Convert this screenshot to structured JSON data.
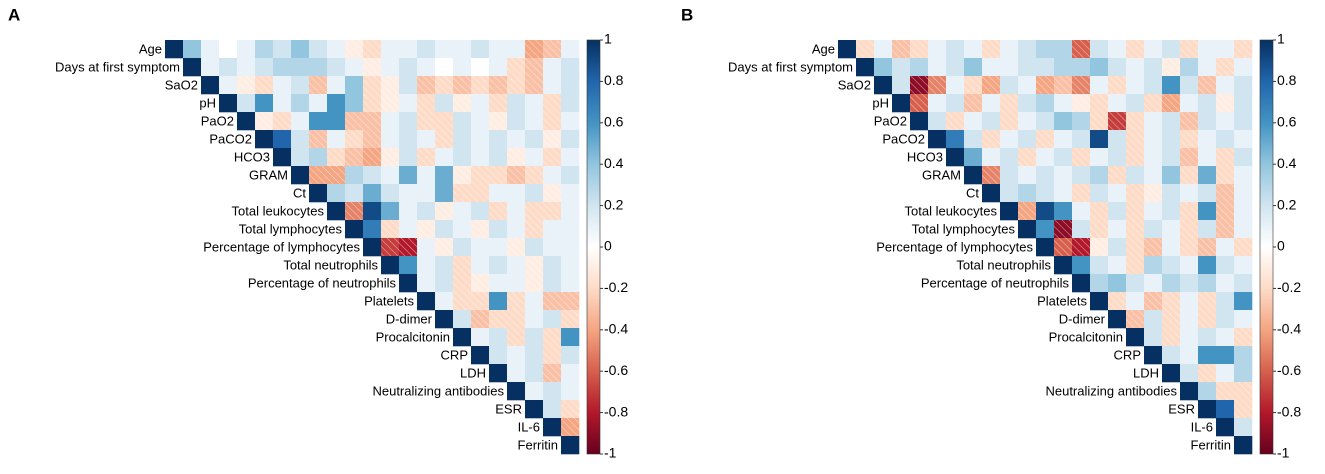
{
  "chart_data": [
    {
      "type": "heatmap",
      "title": "A",
      "categories": [
        "Age",
        "Days at first symptom",
        "SaO2",
        "pH",
        "PaO2",
        "PaCO2",
        "HCO3",
        "GRAM",
        "Ct",
        "Total leukocytes",
        "Total lymphocytes",
        "Percentage of lymphocytes",
        "Total neutrophils",
        "Percentage of neutrophils",
        "Platelets",
        "D-dimer",
        "Procalcitonin",
        "CRP",
        "LDH",
        "Neutralizing antibodies",
        "ESR",
        "IL-6",
        "Ferritin"
      ],
      "values": [
        [
          1,
          0.4,
          0.1,
          0,
          0.1,
          0.3,
          0.2,
          0.4,
          0.2,
          0.1,
          -0.1,
          -0.2,
          0.1,
          0.1,
          0.2,
          0.1,
          0.1,
          0.2,
          0.1,
          0.1,
          -0.4,
          -0.3,
          0.1
        ],
        [
          1,
          0.1,
          0.2,
          0.1,
          0.2,
          0.3,
          0.3,
          0.3,
          0.2,
          0.1,
          -0.1,
          0.1,
          0.2,
          0.1,
          0,
          0.1,
          0,
          0.1,
          -0.2,
          -0.3,
          0.1,
          0.2
        ],
        [
          1,
          0.1,
          -0.1,
          -0.2,
          0.1,
          0.2,
          -0.3,
          0.1,
          0.4,
          -0.2,
          -0.1,
          0.2,
          -0.3,
          -0.2,
          -0.3,
          -0.2,
          -0.3,
          -0.2,
          -0.3,
          0.1,
          0.2
        ],
        [
          1,
          0.2,
          0.6,
          0.1,
          0.3,
          0.1,
          0.6,
          0.4,
          -0.2,
          -0.1,
          0.1,
          -0.2,
          0.2,
          -0.1,
          0.1,
          -0.2,
          0.2,
          0.1,
          -0.2,
          0.2
        ],
        [
          1,
          -0.1,
          -0.2,
          0.1,
          0.6,
          0.6,
          -0.3,
          -0.3,
          0.1,
          0.2,
          -0.2,
          -0.2,
          0.2,
          0.1,
          -0.1,
          0.2,
          0.1,
          -0.2,
          0.1
        ],
        [
          1,
          0.8,
          0.2,
          -0.3,
          0.1,
          -0.2,
          -0.3,
          0.1,
          0.2,
          0.1,
          -0.2,
          0.2,
          0.1,
          0.2,
          0.1,
          0.2,
          -0.1,
          0.2
        ],
        [
          1,
          0.2,
          0.3,
          -0.2,
          -0.3,
          -0.4,
          -0.1,
          0.2,
          -0.2,
          0.1,
          0.2,
          0.1,
          0.2,
          -0.1,
          0.1,
          -0.2,
          0.1
        ],
        [
          1,
          -0.4,
          -0.4,
          0.3,
          0.2,
          0.1,
          0.5,
          0.1,
          0.5,
          -0.1,
          -0.2,
          -0.2,
          -0.3,
          -0.2,
          0.1,
          0.2
        ],
        [
          1,
          0.3,
          0.2,
          0.5,
          0.2,
          0.1,
          0.1,
          0.5,
          -0.2,
          -0.2,
          0.1,
          0.1,
          0.2,
          -0.1,
          0.1
        ],
        [
          1,
          -0.5,
          0.9,
          0.5,
          0.1,
          0.2,
          -0.1,
          0.1,
          0.2,
          -0.2,
          0.1,
          -0.2,
          -0.2,
          0.1
        ],
        [
          1,
          0.7,
          -0.2,
          0.1,
          -0.1,
          0.2,
          0.1,
          -0.1,
          0.2,
          0.1,
          -0.2,
          0.1,
          0.1
        ],
        [
          1,
          -0.7,
          -0.8,
          0.1,
          -0.1,
          0.2,
          0.1,
          0.1,
          -0.1,
          0.2,
          0.1,
          0.1
        ],
        [
          1,
          0.6,
          0.1,
          0.2,
          -0.2,
          0.1,
          0.2,
          0.1,
          -0.1,
          0.2,
          0.1
        ],
        [
          1,
          0.1,
          0.2,
          -0.2,
          -0.1,
          0.1,
          0.1,
          -0.1,
          0.2,
          0.1
        ],
        [
          1,
          0.1,
          -0.2,
          -0.2,
          0.6,
          -0.2,
          0.1,
          -0.3,
          -0.3
        ],
        [
          1,
          0.2,
          -0.3,
          -0.2,
          -0.2,
          0.1,
          0.2,
          -0.2
        ],
        [
          1,
          0.1,
          0.2,
          -0.2,
          0.2,
          -0.2,
          0.6
        ],
        [
          1,
          0.2,
          0.1,
          0.2,
          -0.2,
          0.2
        ],
        [
          1,
          0.1,
          0.2,
          -0.3,
          0.1
        ],
        [
          1,
          0.1,
          0.2,
          0.1
        ],
        [
          1,
          0.2,
          -0.2
        ],
        [
          1,
          -0.4
        ],
        [
          1
        ]
      ],
      "clim": [
        -1,
        1
      ],
      "cticks": [
        1,
        0.8,
        0.6,
        0.4,
        0.2,
        0,
        -0.2,
        -0.4,
        -0.6,
        -0.8,
        -1
      ],
      "colors": [
        "#67001f",
        "#b2182b",
        "#d6604d",
        "#f4a582",
        "#fddbc7",
        "#ffffff",
        "#d1e5f0",
        "#92c5de",
        "#4393c3",
        "#2166ac",
        "#053061"
      ]
    },
    {
      "type": "heatmap",
      "title": "B",
      "categories": [
        "Age",
        "Days at first symptom",
        "SaO2",
        "pH",
        "PaO2",
        "PaCO2",
        "HCO3",
        "GRAM",
        "Ct",
        "Total leukocytes",
        "Total lymphocytes",
        "Percentage of lymphocytes",
        "Total neutrophils",
        "Percentage of neutrophils",
        "Platelets",
        "D-dimer",
        "Procalcitonin",
        "CRP",
        "LDH",
        "Neutralizing antibodies",
        "ESR",
        "IL-6",
        "Ferritin"
      ],
      "values": [
        [
          1,
          -0.2,
          0.1,
          -0.3,
          -0.2,
          0.1,
          0.2,
          0.1,
          -0.2,
          0.1,
          0.2,
          0.3,
          0.3,
          -0.6,
          0.2,
          0.1,
          -0.2,
          0.1,
          0.2,
          -0.2,
          0.1,
          0.1,
          -0.2
        ],
        [
          1,
          0.4,
          0.2,
          0.3,
          0.1,
          0.2,
          0.4,
          0.1,
          0.1,
          0.2,
          0.2,
          0.3,
          0.3,
          0.4,
          0.2,
          0.1,
          0.2,
          -0.1,
          0.3,
          0.1,
          -0.2,
          0.1
        ],
        [
          1,
          0.2,
          -0.9,
          -0.5,
          0.1,
          -0.2,
          -0.4,
          0.2,
          0.1,
          -0.4,
          -0.3,
          -0.5,
          0.1,
          -0.2,
          0.1,
          0.2,
          0.6,
          0.2,
          -0.3,
          0.1,
          0.2
        ],
        [
          1,
          -0.6,
          0.1,
          0.2,
          -0.3,
          0.1,
          -0.2,
          0.2,
          0.3,
          0.1,
          -0.1,
          -0.2,
          0.1,
          0.2,
          -0.2,
          -0.4,
          0.1,
          0.2,
          -0.1,
          0.2
        ],
        [
          1,
          0.2,
          -0.2,
          0.1,
          0.2,
          -0.2,
          0.1,
          0.2,
          0.4,
          0.3,
          -0.2,
          -0.7,
          -0.2,
          0.1,
          0.2,
          -0.3,
          0.2,
          0.1,
          0.2
        ],
        [
          1,
          0.7,
          0.2,
          -0.2,
          0.1,
          0.2,
          -0.2,
          0.1,
          0.2,
          0.9,
          0.2,
          -0.2,
          0.1,
          0.2,
          -0.2,
          0.1,
          0.2,
          0.1
        ],
        [
          1,
          0.5,
          0.1,
          0.2,
          -0.2,
          0.1,
          0.2,
          -0.2,
          0.1,
          0.2,
          -0.2,
          0.1,
          0.2,
          -0.3,
          0.1,
          -0.2,
          0.2
        ],
        [
          1,
          -0.5,
          0.2,
          0.1,
          0.2,
          0.1,
          0.2,
          0.3,
          -0.2,
          0.2,
          0.1,
          0.4,
          -0.2,
          0.5,
          -0.2,
          0.1
        ],
        [
          1,
          0.2,
          0.3,
          0.2,
          0.1,
          -0.2,
          0.2,
          0.1,
          -0.2,
          -0.1,
          0.2,
          0.1,
          0.2,
          -0.3,
          0.1
        ],
        [
          1,
          -0.4,
          0.9,
          0.6,
          0.1,
          -0.2,
          0.2,
          -0.2,
          0.1,
          0.2,
          -0.2,
          0.6,
          -0.3,
          0.1
        ],
        [
          1,
          0.6,
          -0.9,
          0.2,
          -0.2,
          0.1,
          -0.2,
          0.2,
          0.1,
          -0.2,
          0.2,
          -0.3,
          0.1
        ],
        [
          1,
          -0.6,
          -0.8,
          -0.1,
          0.2,
          -0.2,
          -0.3,
          0.1,
          -0.2,
          -0.3,
          0.1,
          -0.2
        ],
        [
          1,
          0.6,
          0.2,
          0.1,
          -0.2,
          0.3,
          0.2,
          0.1,
          0.6,
          0.2,
          0.1
        ],
        [
          1,
          0.3,
          0.4,
          0.2,
          0.1,
          0.3,
          0.2,
          0.3,
          0.1,
          0.2
        ],
        [
          1,
          -0.2,
          0.1,
          -0.3,
          -0.2,
          0.1,
          -0.2,
          0.2,
          0.6
        ],
        [
          1,
          -0.3,
          0.2,
          -0.2,
          0.1,
          -0.2,
          0.2,
          0.1
        ],
        [
          1,
          0.2,
          -0.2,
          0.1,
          0.2,
          0.1,
          -0.2
        ],
        [
          1,
          0.2,
          0.1,
          0.6,
          0.6,
          0.3
        ],
        [
          1,
          0.2,
          -0.2,
          0.1,
          0.3
        ],
        [
          1,
          0.3,
          -0.2,
          -0.2
        ],
        [
          1,
          0.8,
          -0.2
        ],
        [
          1,
          0.2
        ],
        [
          1
        ]
      ],
      "clim": [
        -1,
        1
      ],
      "cticks": [
        1,
        0.8,
        0.6,
        0.4,
        0.2,
        0,
        -0.2,
        -0.4,
        -0.6,
        -0.8,
        -1
      ],
      "colors": [
        "#67001f",
        "#b2182b",
        "#d6604d",
        "#f4a582",
        "#fddbc7",
        "#ffffff",
        "#d1e5f0",
        "#92c5de",
        "#4393c3",
        "#2166ac",
        "#053061"
      ]
    }
  ]
}
